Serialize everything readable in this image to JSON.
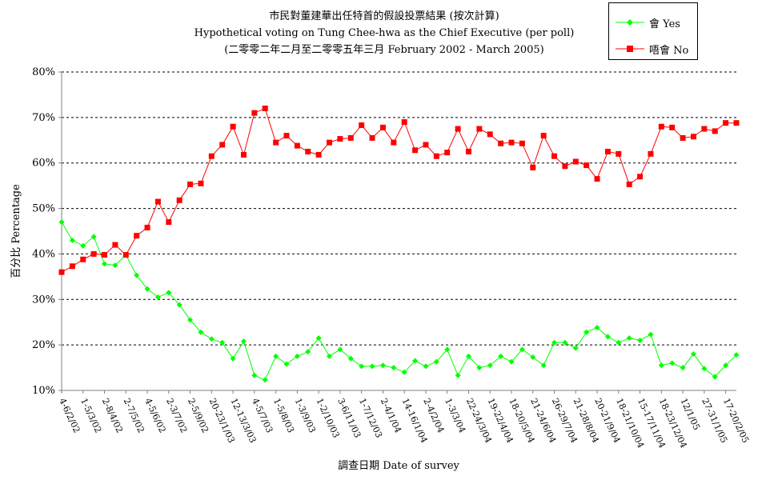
{
  "chart_data": {
    "type": "line",
    "title": "市民對董建華出任特首的假設投票結果 (按次計算)",
    "subtitle": "Hypothetical voting on Tung Chee-hwa as the Chief Executive (per poll)",
    "subtitle2": "(二零零二年二月至二零零五年三月 February 2002 - March 2005)",
    "xlabel": "調查日期 Date of survey",
    "ylabel": "百分比 Percentage",
    "ylim": [
      10,
      80
    ],
    "yticks": [
      "10%",
      "20%",
      "30%",
      "40%",
      "50%",
      "60%",
      "70%",
      "80%"
    ],
    "grid": true,
    "legend_position": "top-right",
    "x_tick_labels": [
      "4-6/2/02",
      "1-5/3/02",
      "2-8/4/02",
      "2-7/5/02",
      "4-5/6/02",
      "2-3/7/02",
      "2-5/9/02",
      "20-23/1/03",
      "12-13/3/03",
      "4-5/7/03",
      "1-5/8/03",
      "1-3/9/03",
      "1-2/10/03",
      "3-6/11/03",
      "1-7/12/03",
      "2-4/1/04",
      "14-16/1/04",
      "2-4/2/04",
      "1-3/3/04",
      "22-24/3/04",
      "19-22/4/04",
      "18-20/5/04",
      "21-24/6/04",
      "26-29/7/04",
      "21-28/8/04",
      "20-21/9/04",
      "18-21/10/04",
      "15-17/11/04",
      "18-23/12/04",
      "12/1/05",
      "27-31/1/05",
      "17-20/2/05"
    ],
    "series": [
      {
        "name": "會 Yes",
        "color": "#00ff00",
        "marker": "diamond",
        "values": [
          47.0,
          43.0,
          41.8,
          43.8,
          37.8,
          37.5,
          39.8,
          35.3,
          32.3,
          30.5,
          31.5,
          28.8,
          25.5,
          22.8,
          21.3,
          20.5,
          17.0,
          20.8,
          13.3,
          12.3,
          17.5,
          15.8,
          17.5,
          18.5,
          21.5,
          17.5,
          19.0,
          17.0,
          15.3,
          15.3,
          15.5,
          15.0,
          14.0,
          16.5,
          15.3,
          16.3,
          19.0,
          13.3,
          17.5,
          15.0,
          15.5,
          17.5,
          16.3,
          19.0,
          17.3,
          15.5,
          20.5,
          20.5,
          19.3,
          22.8,
          23.8,
          21.8,
          20.5,
          21.5,
          21.0,
          22.3,
          15.5,
          16.0,
          15.0,
          18.0,
          14.8,
          13.0,
          15.5,
          17.8
        ]
      },
      {
        "name": "唔會 No",
        "color": "#ff0000",
        "marker": "square",
        "values": [
          36.0,
          37.3,
          38.8,
          40.0,
          39.8,
          42.0,
          39.8,
          44.0,
          45.8,
          51.5,
          47.0,
          51.8,
          55.3,
          55.5,
          61.5,
          64.0,
          68.0,
          61.8,
          71.0,
          72.0,
          64.5,
          66.0,
          63.8,
          62.5,
          61.8,
          64.5,
          65.3,
          65.5,
          68.3,
          65.5,
          67.8,
          64.5,
          69.0,
          62.8,
          64.0,
          61.5,
          62.3,
          67.5,
          62.5,
          67.5,
          66.3,
          64.3,
          64.5,
          64.3,
          59.0,
          66.0,
          61.5,
          59.3,
          60.3,
          59.5,
          56.5,
          62.5,
          62.0,
          55.3,
          57.0,
          62.0,
          68.0,
          67.8,
          65.5,
          65.8,
          67.5,
          67.0,
          68.8,
          68.8
        ]
      }
    ]
  }
}
